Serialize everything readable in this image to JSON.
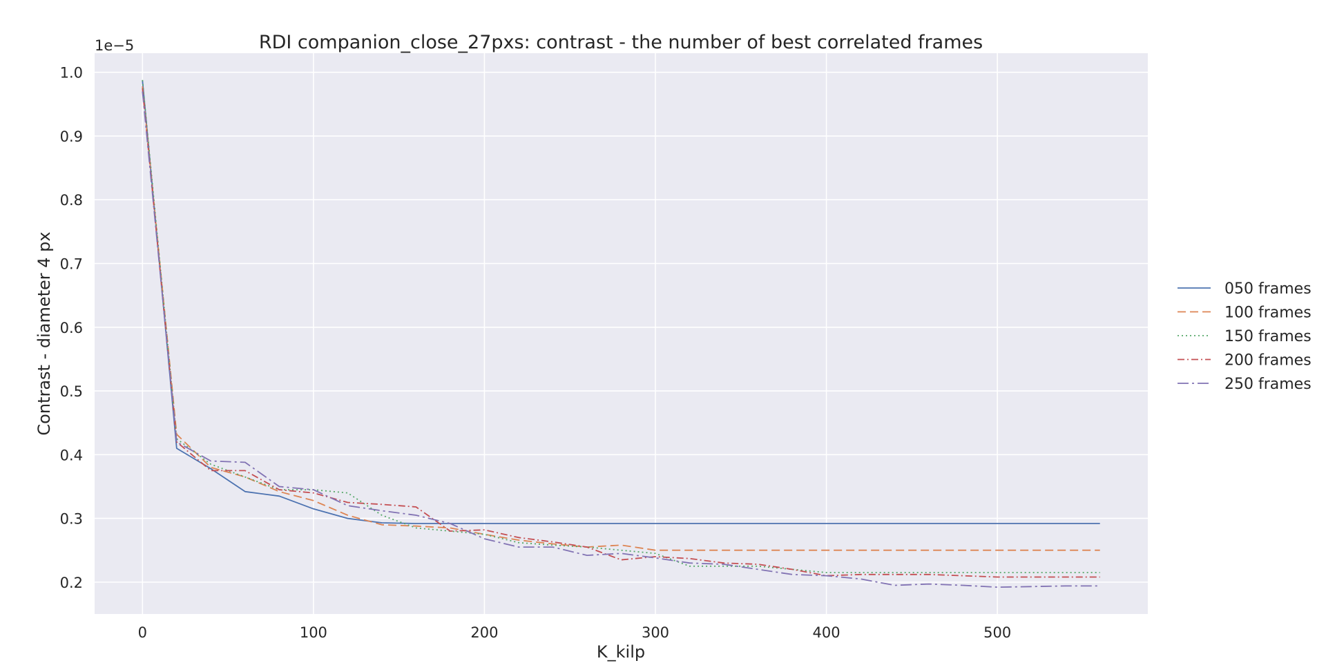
{
  "chart_data": {
    "type": "line",
    "title": "RDI companion_close_27pxs: contrast - the number of best correlated frames",
    "xlabel": "K_kilp",
    "ylabel": "Contrast - diameter 4 px",
    "y_offset_label": "1e−5",
    "xlim": [
      -28,
      588
    ],
    "ylim": [
      0.15,
      1.03
    ],
    "x_ticks": [
      0,
      100,
      200,
      300,
      400,
      500
    ],
    "x_tick_labels": [
      "0",
      "100",
      "200",
      "300",
      "400",
      "500"
    ],
    "y_ticks": [
      0.2,
      0.3,
      0.4,
      0.5,
      0.6,
      0.7,
      0.8,
      0.9,
      1.0
    ],
    "y_tick_labels": [
      "0.2",
      "0.3",
      "0.4",
      "0.5",
      "0.6",
      "0.7",
      "0.8",
      "0.9",
      "1.0"
    ],
    "grid": true,
    "background": "#eaeaf2",
    "legend_position": "right, outside plot",
    "x": [
      0,
      20,
      40,
      60,
      80,
      100,
      120,
      140,
      160,
      180,
      200,
      220,
      240,
      260,
      280,
      300,
      320,
      340,
      360,
      380,
      400,
      420,
      440,
      460,
      480,
      500,
      520,
      540,
      560
    ],
    "series": [
      {
        "name": "050 frames",
        "color": "#4c72b0",
        "dash": "solid",
        "values": [
          0.987,
          0.41,
          0.378,
          0.342,
          0.335,
          0.315,
          0.3,
          0.293,
          0.292,
          0.292,
          0.292,
          0.292,
          0.292,
          0.292,
          0.292,
          0.292,
          0.292,
          0.292,
          0.292,
          0.292,
          0.292,
          0.292,
          0.292,
          0.292,
          0.292,
          0.292,
          0.292,
          0.292,
          0.292
        ]
      },
      {
        "name": "100 frames",
        "color": "#dd8452",
        "dash": "dashed",
        "values": [
          0.978,
          0.432,
          0.38,
          0.365,
          0.342,
          0.328,
          0.305,
          0.29,
          0.288,
          0.285,
          0.275,
          0.266,
          0.26,
          0.255,
          0.258,
          0.25,
          0.25,
          0.25,
          0.25,
          0.25,
          0.25,
          0.25,
          0.25,
          0.25,
          0.25,
          0.25,
          0.25,
          0.25,
          0.25
        ]
      },
      {
        "name": "150 frames",
        "color": "#55a868",
        "dash": "dotted",
        "values": [
          0.988,
          0.425,
          0.385,
          0.365,
          0.345,
          0.345,
          0.34,
          0.305,
          0.285,
          0.28,
          0.275,
          0.262,
          0.258,
          0.255,
          0.25,
          0.245,
          0.225,
          0.225,
          0.225,
          0.22,
          0.215,
          0.215,
          0.215,
          0.215,
          0.215,
          0.215,
          0.215,
          0.215,
          0.215
        ]
      },
      {
        "name": "200 frames",
        "color": "#c44e52",
        "dash": "dashdot",
        "values": [
          0.975,
          0.42,
          0.375,
          0.375,
          0.345,
          0.34,
          0.325,
          0.322,
          0.318,
          0.28,
          0.282,
          0.27,
          0.263,
          0.255,
          0.235,
          0.24,
          0.237,
          0.23,
          0.228,
          0.22,
          0.21,
          0.212,
          0.212,
          0.212,
          0.21,
          0.208,
          0.208,
          0.208,
          0.208
        ]
      },
      {
        "name": "250 frames",
        "color": "#8172b3",
        "dash": "dashdotlong",
        "values": [
          0.97,
          0.42,
          0.39,
          0.388,
          0.35,
          0.345,
          0.32,
          0.312,
          0.305,
          0.292,
          0.268,
          0.255,
          0.255,
          0.242,
          0.245,
          0.238,
          0.23,
          0.228,
          0.22,
          0.212,
          0.21,
          0.205,
          0.195,
          0.197,
          0.195,
          0.192,
          0.193,
          0.194,
          0.194
        ]
      }
    ]
  }
}
